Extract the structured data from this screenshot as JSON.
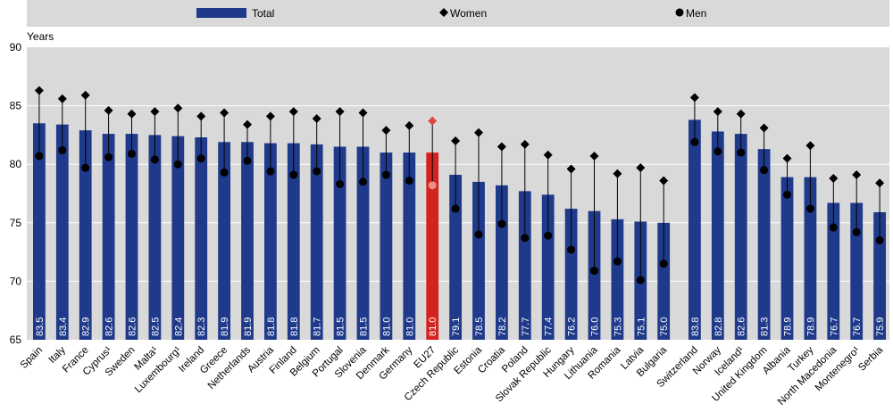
{
  "chart_data": {
    "type": "bar",
    "title": "",
    "ylabel": "Years",
    "xlabel": "",
    "ylim": [
      65,
      90
    ],
    "yticks": [
      65,
      70,
      75,
      80,
      85,
      90
    ],
    "legend": {
      "placement": "top",
      "entries": [
        "Total",
        "Women",
        "Men"
      ]
    },
    "colors": {
      "total": "#1f3a8a",
      "highlight": "#d4231f",
      "women": "#000000",
      "men": "#000000",
      "highlight_women": "#e0473e",
      "highlight_men": "#ea8f86",
      "plot_bg": "#d9d9d9",
      "grid": "#ffffff"
    },
    "highlight": "EU27",
    "groups": [
      {
        "categories": [
          "Spain",
          "Italy",
          "France",
          "Cyprus¹",
          "Sweden",
          "Malta¹",
          "Luxembourg¹",
          "Ireland",
          "Greece",
          "Netherlands",
          "Austria",
          "Finland",
          "Belgium",
          "Portugal",
          "Slovenia",
          "Denmark",
          "Germany",
          "EU27",
          "Czech Republic",
          "Estonia",
          "Croatia",
          "Poland",
          "Slovak Republic",
          "Hungary",
          "Lithuania",
          "Romania",
          "Latvia",
          "Bulgaria"
        ],
        "total": [
          83.5,
          83.4,
          82.9,
          82.6,
          82.6,
          82.5,
          82.4,
          82.3,
          81.9,
          81.9,
          81.8,
          81.8,
          81.7,
          81.5,
          81.5,
          81.0,
          81.0,
          81.0,
          79.1,
          78.5,
          78.2,
          77.7,
          77.4,
          76.2,
          76.0,
          75.3,
          75.1,
          75.0
        ],
        "women": [
          86.3,
          85.6,
          85.9,
          84.6,
          84.3,
          84.5,
          84.8,
          84.1,
          84.4,
          83.4,
          84.1,
          84.5,
          83.9,
          84.5,
          84.4,
          82.9,
          83.3,
          83.7,
          82.0,
          82.7,
          81.5,
          81.7,
          80.8,
          79.6,
          80.7,
          79.2,
          79.7,
          78.6
        ],
        "men": [
          80.7,
          81.2,
          79.7,
          80.6,
          80.9,
          80.4,
          80.0,
          80.5,
          79.3,
          80.3,
          79.4,
          79.1,
          79.4,
          78.3,
          78.5,
          79.1,
          78.6,
          78.2,
          76.2,
          74.0,
          74.9,
          73.7,
          73.9,
          72.7,
          70.9,
          71.7,
          70.1,
          71.5
        ]
      },
      {
        "categories": [
          "Switzerland",
          "Norway",
          "Iceland¹",
          "United Kingdom",
          "Albania",
          "Turkey",
          "North Macedonia",
          "Montenegro¹",
          "Serbia"
        ],
        "total": [
          83.8,
          82.8,
          82.6,
          81.3,
          78.9,
          78.9,
          76.7,
          76.7,
          75.9
        ],
        "women": [
          85.7,
          84.5,
          84.3,
          83.1,
          80.5,
          81.6,
          78.8,
          79.1,
          78.4
        ],
        "men": [
          81.9,
          81.1,
          81.0,
          79.5,
          77.4,
          76.2,
          74.6,
          74.2,
          73.5
        ]
      }
    ],
    "value_labels": [
      [
        "83.5",
        "83.4",
        "82.9",
        "82.6",
        "82.6",
        "82.5",
        "82.4",
        "82.3",
        "81.9",
        "81.9",
        "81.8",
        "81.8",
        "81.7",
        "81.5",
        "81.5",
        "81.0",
        "81.0",
        "81.0",
        "79.1",
        "78.5",
        "78.2",
        "77.7",
        "77.4",
        "76.2",
        "76.0",
        "75.3",
        "75.1",
        "75.0"
      ],
      [
        "83.8",
        "82.8",
        "82.6",
        "81.3",
        "78.9",
        "78.9",
        "76.7",
        "76.7",
        "75.9"
      ]
    ]
  }
}
